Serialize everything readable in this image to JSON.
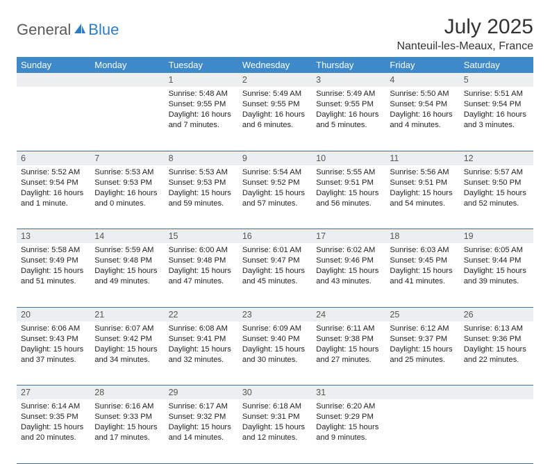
{
  "brand": {
    "part1": "General",
    "part2": "Blue",
    "logo_fill": "#2e7cc2"
  },
  "title": "July 2025",
  "location": "Nanteuil-les-Meaux, France",
  "colors": {
    "header_bg": "#3e89c9",
    "header_text": "#ffffff",
    "daynum_bg": "#eceeef",
    "daynum_text": "#555555",
    "row_border": "#3e6da3",
    "body_text": "#222222",
    "page_bg": "#ffffff"
  },
  "weekdays": [
    "Sunday",
    "Monday",
    "Tuesday",
    "Wednesday",
    "Thursday",
    "Friday",
    "Saturday"
  ],
  "weeks": [
    [
      null,
      null,
      {
        "n": "1",
        "sr": "5:48 AM",
        "ss": "9:55 PM",
        "dl": "16 hours and 7 minutes."
      },
      {
        "n": "2",
        "sr": "5:49 AM",
        "ss": "9:55 PM",
        "dl": "16 hours and 6 minutes."
      },
      {
        "n": "3",
        "sr": "5:49 AM",
        "ss": "9:55 PM",
        "dl": "16 hours and 5 minutes."
      },
      {
        "n": "4",
        "sr": "5:50 AM",
        "ss": "9:54 PM",
        "dl": "16 hours and 4 minutes."
      },
      {
        "n": "5",
        "sr": "5:51 AM",
        "ss": "9:54 PM",
        "dl": "16 hours and 3 minutes."
      }
    ],
    [
      {
        "n": "6",
        "sr": "5:52 AM",
        "ss": "9:54 PM",
        "dl": "16 hours and 1 minute."
      },
      {
        "n": "7",
        "sr": "5:53 AM",
        "ss": "9:53 PM",
        "dl": "16 hours and 0 minutes."
      },
      {
        "n": "8",
        "sr": "5:53 AM",
        "ss": "9:53 PM",
        "dl": "15 hours and 59 minutes."
      },
      {
        "n": "9",
        "sr": "5:54 AM",
        "ss": "9:52 PM",
        "dl": "15 hours and 57 minutes."
      },
      {
        "n": "10",
        "sr": "5:55 AM",
        "ss": "9:51 PM",
        "dl": "15 hours and 56 minutes."
      },
      {
        "n": "11",
        "sr": "5:56 AM",
        "ss": "9:51 PM",
        "dl": "15 hours and 54 minutes."
      },
      {
        "n": "12",
        "sr": "5:57 AM",
        "ss": "9:50 PM",
        "dl": "15 hours and 52 minutes."
      }
    ],
    [
      {
        "n": "13",
        "sr": "5:58 AM",
        "ss": "9:49 PM",
        "dl": "15 hours and 51 minutes."
      },
      {
        "n": "14",
        "sr": "5:59 AM",
        "ss": "9:48 PM",
        "dl": "15 hours and 49 minutes."
      },
      {
        "n": "15",
        "sr": "6:00 AM",
        "ss": "9:48 PM",
        "dl": "15 hours and 47 minutes."
      },
      {
        "n": "16",
        "sr": "6:01 AM",
        "ss": "9:47 PM",
        "dl": "15 hours and 45 minutes."
      },
      {
        "n": "17",
        "sr": "6:02 AM",
        "ss": "9:46 PM",
        "dl": "15 hours and 43 minutes."
      },
      {
        "n": "18",
        "sr": "6:03 AM",
        "ss": "9:45 PM",
        "dl": "15 hours and 41 minutes."
      },
      {
        "n": "19",
        "sr": "6:05 AM",
        "ss": "9:44 PM",
        "dl": "15 hours and 39 minutes."
      }
    ],
    [
      {
        "n": "20",
        "sr": "6:06 AM",
        "ss": "9:43 PM",
        "dl": "15 hours and 37 minutes."
      },
      {
        "n": "21",
        "sr": "6:07 AM",
        "ss": "9:42 PM",
        "dl": "15 hours and 34 minutes."
      },
      {
        "n": "22",
        "sr": "6:08 AM",
        "ss": "9:41 PM",
        "dl": "15 hours and 32 minutes."
      },
      {
        "n": "23",
        "sr": "6:09 AM",
        "ss": "9:40 PM",
        "dl": "15 hours and 30 minutes."
      },
      {
        "n": "24",
        "sr": "6:11 AM",
        "ss": "9:38 PM",
        "dl": "15 hours and 27 minutes."
      },
      {
        "n": "25",
        "sr": "6:12 AM",
        "ss": "9:37 PM",
        "dl": "15 hours and 25 minutes."
      },
      {
        "n": "26",
        "sr": "6:13 AM",
        "ss": "9:36 PM",
        "dl": "15 hours and 22 minutes."
      }
    ],
    [
      {
        "n": "27",
        "sr": "6:14 AM",
        "ss": "9:35 PM",
        "dl": "15 hours and 20 minutes."
      },
      {
        "n": "28",
        "sr": "6:16 AM",
        "ss": "9:33 PM",
        "dl": "15 hours and 17 minutes."
      },
      {
        "n": "29",
        "sr": "6:17 AM",
        "ss": "9:32 PM",
        "dl": "15 hours and 14 minutes."
      },
      {
        "n": "30",
        "sr": "6:18 AM",
        "ss": "9:31 PM",
        "dl": "15 hours and 12 minutes."
      },
      {
        "n": "31",
        "sr": "6:20 AM",
        "ss": "9:29 PM",
        "dl": "15 hours and 9 minutes."
      },
      null,
      null
    ]
  ],
  "labels": {
    "sunrise": "Sunrise:",
    "sunset": "Sunset:",
    "daylight": "Daylight:"
  }
}
